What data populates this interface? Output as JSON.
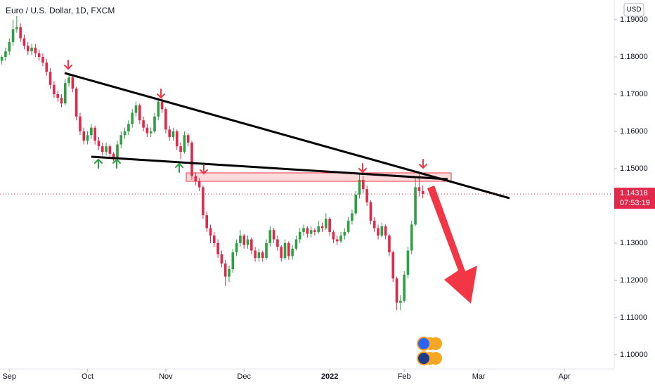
{
  "chart_data": {
    "type": "candlestick",
    "title": "Euro / U.S. Dollar, 1D, FXCM",
    "currency": "USD",
    "up_color": "#2f9e44",
    "down_color": "#e0294a",
    "grid": false,
    "last_price": 1.14318,
    "countdown": "07:53:19",
    "xlim": [
      -0.5,
      164.0
    ],
    "ylim": [
      1.0962,
      1.1953
    ],
    "xticks": [
      {
        "value": 2,
        "label": "Sep"
      },
      {
        "value": 23,
        "label": "Oct"
      },
      {
        "value": 44,
        "label": "Nov"
      },
      {
        "value": 65,
        "label": "Dec"
      },
      {
        "value": 88,
        "label": "2022"
      },
      {
        "value": 108,
        "label": "Feb"
      },
      {
        "value": 128,
        "label": "Mar"
      },
      {
        "value": 151,
        "label": "Apr"
      }
    ],
    "yticks": [
      {
        "value": 1.19,
        "label": "1.19000"
      },
      {
        "value": 1.18,
        "label": "1.18000"
      },
      {
        "value": 1.17,
        "label": "1.17000"
      },
      {
        "value": 1.16,
        "label": "1.16000"
      },
      {
        "value": 1.15,
        "label": "1.15000"
      },
      {
        "value": 1.13,
        "label": "1.13000"
      },
      {
        "value": 1.12,
        "label": "1.12000"
      },
      {
        "value": 1.11,
        "label": "1.11000"
      },
      {
        "value": 1.1,
        "label": "1.10000"
      }
    ],
    "candles": [
      [
        1.179,
        1.1805,
        1.178,
        1.18
      ],
      [
        1.18,
        1.1825,
        1.179,
        1.1815
      ],
      [
        1.1815,
        1.185,
        1.1805,
        1.184
      ],
      [
        1.184,
        1.19,
        1.183,
        1.1875
      ],
      [
        1.1875,
        1.191,
        1.1865,
        1.188
      ],
      [
        1.188,
        1.189,
        1.184,
        1.185
      ],
      [
        1.185,
        1.186,
        1.182,
        1.183
      ],
      [
        1.183,
        1.184,
        1.1805,
        1.1815
      ],
      [
        1.1815,
        1.1835,
        1.1805,
        1.1825
      ],
      [
        1.1825,
        1.1835,
        1.18,
        1.181
      ],
      [
        1.181,
        1.182,
        1.179,
        1.18
      ],
      [
        1.18,
        1.181,
        1.1775,
        1.1785
      ],
      [
        1.1785,
        1.1795,
        1.175,
        1.176
      ],
      [
        1.176,
        1.177,
        1.1715,
        1.1725
      ],
      [
        1.1725,
        1.1735,
        1.169,
        1.17
      ],
      [
        1.17,
        1.171,
        1.168,
        1.169
      ],
      [
        1.169,
        1.17,
        1.1665,
        1.1675
      ],
      [
        1.1675,
        1.174,
        1.167,
        1.173
      ],
      [
        1.173,
        1.1755,
        1.172,
        1.1745
      ],
      [
        1.1745,
        1.175,
        1.1705,
        1.1715
      ],
      [
        1.1715,
        1.172,
        1.163,
        1.164
      ],
      [
        1.164,
        1.165,
        1.159,
        1.16
      ],
      [
        1.16,
        1.161,
        1.1565,
        1.1575
      ],
      [
        1.1575,
        1.16,
        1.1565,
        1.159
      ],
      [
        1.159,
        1.162,
        1.158,
        1.161
      ],
      [
        1.161,
        1.1615,
        1.1565,
        1.1575
      ],
      [
        1.1575,
        1.1585,
        1.155,
        1.156
      ],
      [
        1.156,
        1.157,
        1.1535,
        1.1545
      ],
      [
        1.1545,
        1.157,
        1.1535,
        1.156
      ],
      [
        1.156,
        1.1565,
        1.153,
        1.154
      ],
      [
        1.154,
        1.1545,
        1.152,
        1.1525
      ],
      [
        1.1525,
        1.1575,
        1.152,
        1.1565
      ],
      [
        1.1565,
        1.16,
        1.1555,
        1.159
      ],
      [
        1.159,
        1.161,
        1.158,
        1.16
      ],
      [
        1.16,
        1.163,
        1.159,
        1.162
      ],
      [
        1.162,
        1.166,
        1.161,
        1.165
      ],
      [
        1.165,
        1.168,
        1.164,
        1.167
      ],
      [
        1.167,
        1.1675,
        1.162,
        1.163
      ],
      [
        1.163,
        1.164,
        1.16,
        1.161
      ],
      [
        1.161,
        1.162,
        1.1585,
        1.1595
      ],
      [
        1.1595,
        1.161,
        1.1585,
        1.16
      ],
      [
        1.16,
        1.165,
        1.1595,
        1.164
      ],
      [
        1.164,
        1.169,
        1.163,
        1.168
      ],
      [
        1.168,
        1.169,
        1.165,
        1.166
      ],
      [
        1.166,
        1.1665,
        1.1595,
        1.1605
      ],
      [
        1.1605,
        1.1615,
        1.1575,
        1.1585
      ],
      [
        1.1585,
        1.161,
        1.1575,
        1.16
      ],
      [
        1.16,
        1.1605,
        1.155,
        1.156
      ],
      [
        1.156,
        1.157,
        1.1525,
        1.1545
      ],
      [
        1.1545,
        1.16,
        1.154,
        1.159
      ],
      [
        1.159,
        1.1595,
        1.156,
        1.157
      ],
      [
        1.157,
        1.1575,
        1.147,
        1.148
      ],
      [
        1.148,
        1.149,
        1.1455,
        1.1465
      ],
      [
        1.1465,
        1.1475,
        1.144,
        1.145
      ],
      [
        1.145,
        1.1455,
        1.1365,
        1.1375
      ],
      [
        1.1375,
        1.1385,
        1.133,
        1.134
      ],
      [
        1.134,
        1.135,
        1.13,
        1.132
      ],
      [
        1.132,
        1.133,
        1.129,
        1.13
      ],
      [
        1.13,
        1.131,
        1.126,
        1.127
      ],
      [
        1.127,
        1.128,
        1.1235,
        1.1245
      ],
      [
        1.1245,
        1.1255,
        1.1185,
        1.121
      ],
      [
        1.121,
        1.124,
        1.1195,
        1.123
      ],
      [
        1.123,
        1.1285,
        1.122,
        1.1275
      ],
      [
        1.1275,
        1.131,
        1.1265,
        1.13
      ],
      [
        1.13,
        1.1335,
        1.129,
        1.132
      ],
      [
        1.132,
        1.1325,
        1.1285,
        1.1295
      ],
      [
        1.1295,
        1.132,
        1.1285,
        1.131
      ],
      [
        1.131,
        1.1315,
        1.127,
        1.128
      ],
      [
        1.128,
        1.129,
        1.125,
        1.126
      ],
      [
        1.126,
        1.1285,
        1.125,
        1.1275
      ],
      [
        1.1275,
        1.128,
        1.125,
        1.126
      ],
      [
        1.126,
        1.131,
        1.1255,
        1.13
      ],
      [
        1.13,
        1.1345,
        1.129,
        1.1335
      ],
      [
        1.1335,
        1.134,
        1.13,
        1.131
      ],
      [
        1.131,
        1.132,
        1.128,
        1.129
      ],
      [
        1.129,
        1.1295,
        1.125,
        1.126
      ],
      [
        1.126,
        1.131,
        1.1255,
        1.13
      ],
      [
        1.13,
        1.1305,
        1.1255,
        1.1265
      ],
      [
        1.1265,
        1.1295,
        1.1255,
        1.1285
      ],
      [
        1.1285,
        1.132,
        1.128,
        1.131
      ],
      [
        1.131,
        1.134,
        1.13,
        1.133
      ],
      [
        1.133,
        1.135,
        1.132,
        1.134
      ],
      [
        1.134,
        1.1345,
        1.1315,
        1.1325
      ],
      [
        1.1325,
        1.1345,
        1.1315,
        1.1335
      ],
      [
        1.1335,
        1.134,
        1.132,
        1.133
      ],
      [
        1.133,
        1.136,
        1.1325,
        1.1345
      ],
      [
        1.1345,
        1.1355,
        1.133,
        1.134
      ],
      [
        1.134,
        1.138,
        1.1335,
        1.1365
      ],
      [
        1.1365,
        1.137,
        1.132,
        1.133
      ],
      [
        1.133,
        1.1335,
        1.13,
        1.131
      ],
      [
        1.131,
        1.132,
        1.1295,
        1.1305
      ],
      [
        1.1305,
        1.133,
        1.13,
        1.132
      ],
      [
        1.132,
        1.134,
        1.131,
        1.133
      ],
      [
        1.133,
        1.137,
        1.1325,
        1.136
      ],
      [
        1.136,
        1.139,
        1.135,
        1.138
      ],
      [
        1.138,
        1.144,
        1.1375,
        1.143
      ],
      [
        1.143,
        1.1485,
        1.142,
        1.147
      ],
      [
        1.147,
        1.148,
        1.1435,
        1.1445
      ],
      [
        1.1445,
        1.1455,
        1.14,
        1.141
      ],
      [
        1.141,
        1.1415,
        1.135,
        1.136
      ],
      [
        1.136,
        1.137,
        1.133,
        1.134
      ],
      [
        1.134,
        1.135,
        1.131,
        1.132
      ],
      [
        1.132,
        1.1355,
        1.1315,
        1.1345
      ],
      [
        1.1345,
        1.135,
        1.131,
        1.132
      ],
      [
        1.132,
        1.1325,
        1.1265,
        1.1275
      ],
      [
        1.1275,
        1.128,
        1.1195,
        1.1205
      ],
      [
        1.1205,
        1.121,
        1.112,
        1.114
      ],
      [
        1.114,
        1.116,
        1.112,
        1.1145
      ],
      [
        1.1145,
        1.1225,
        1.114,
        1.1215
      ],
      [
        1.1215,
        1.129,
        1.1205,
        1.128
      ],
      [
        1.128,
        1.136,
        1.127,
        1.135
      ],
      [
        1.135,
        1.1475,
        1.1345,
        1.145
      ],
      [
        1.145,
        1.1485,
        1.1425,
        1.144
      ],
      [
        1.144,
        1.1455,
        1.142,
        1.1432
      ]
    ]
  }
}
